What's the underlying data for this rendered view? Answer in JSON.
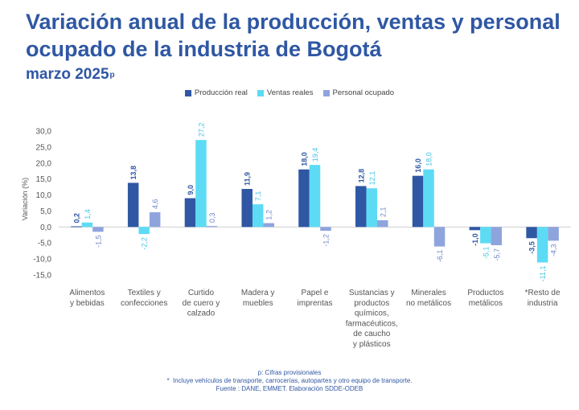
{
  "header": {
    "title": "Variación anual de la producción, ventas y personal ocupado de la industria de Bogotá",
    "subtitle": "marzo 2025",
    "subtitle_sup": "p"
  },
  "colors": {
    "produccion": "#2f57a3",
    "ventas": "#5ddbf5",
    "personal": "#8ea4dc",
    "axis_text": "#555555",
    "value_text": "#2f57a3"
  },
  "chart_data": {
    "type": "bar",
    "ylabel": "Variación (%)",
    "ylim": [
      -15,
      30
    ],
    "yticks": [
      "30,0",
      "25,0",
      "20,0",
      "15,0",
      "10,0",
      "5,0",
      "0,0",
      "-5,0",
      "-10,0",
      "-15,0"
    ],
    "ytick_values": [
      30,
      25,
      20,
      15,
      10,
      5,
      0,
      -5,
      -10,
      -15
    ],
    "grid": false,
    "legend_position": "top-center",
    "categories": [
      [
        "Alimentos",
        "y bebidas"
      ],
      [
        "Textiles y",
        "confecciones"
      ],
      [
        "Curtido",
        "de cuero y",
        "calzado"
      ],
      [
        "Madera y",
        "muebles"
      ],
      [
        "Papel e",
        "imprentas"
      ],
      [
        "Sustancias y",
        "productos",
        "químicos,",
        "farmacéuticos,",
        "de caucho",
        "y plásticos"
      ],
      [
        "Minerales",
        "no metálicos"
      ],
      [
        "Productos",
        "metálicos"
      ],
      [
        "*Resto de",
        "industria"
      ]
    ],
    "series": [
      {
        "name": "Producción real",
        "color_key": "produccion",
        "values": [
          0.2,
          13.8,
          9.0,
          11.9,
          18.0,
          12.8,
          16.0,
          -1.0,
          -3.5
        ],
        "labels": [
          "0,2",
          "13,8",
          "9,0",
          "11,9",
          "18,0",
          "12,8",
          "16,0",
          "-1,0",
          "-3,5"
        ]
      },
      {
        "name": "Ventas reales",
        "color_key": "ventas",
        "values": [
          1.4,
          -2.2,
          27.2,
          7.1,
          19.4,
          12.1,
          18.0,
          -5.1,
          -11.1
        ],
        "labels": [
          "1,4",
          "-2,2",
          "27,2",
          "7,1",
          "19,4",
          "12,1",
          "18,0",
          "-5,1",
          "-11,1"
        ]
      },
      {
        "name": "Personal ocupado",
        "color_key": "personal",
        "values": [
          -1.5,
          4.6,
          0.3,
          1.2,
          -1.2,
          2.1,
          -6.1,
          -5.7,
          -4.3
        ],
        "labels": [
          "-1,5",
          "4,6",
          "0,3",
          "1,2",
          "-1,2",
          "2,1",
          "-6,1",
          "-5,7",
          "-4,3"
        ]
      }
    ]
  },
  "footer": {
    "note1": "p: Cifras provisionales",
    "note2": "*  Incluye vehículos de transporte, carrocerías, autopartes y otro equipo de transporte.",
    "note3": "Fuente : DANE, EMMET. Elaboración SDDE-ODEB"
  }
}
